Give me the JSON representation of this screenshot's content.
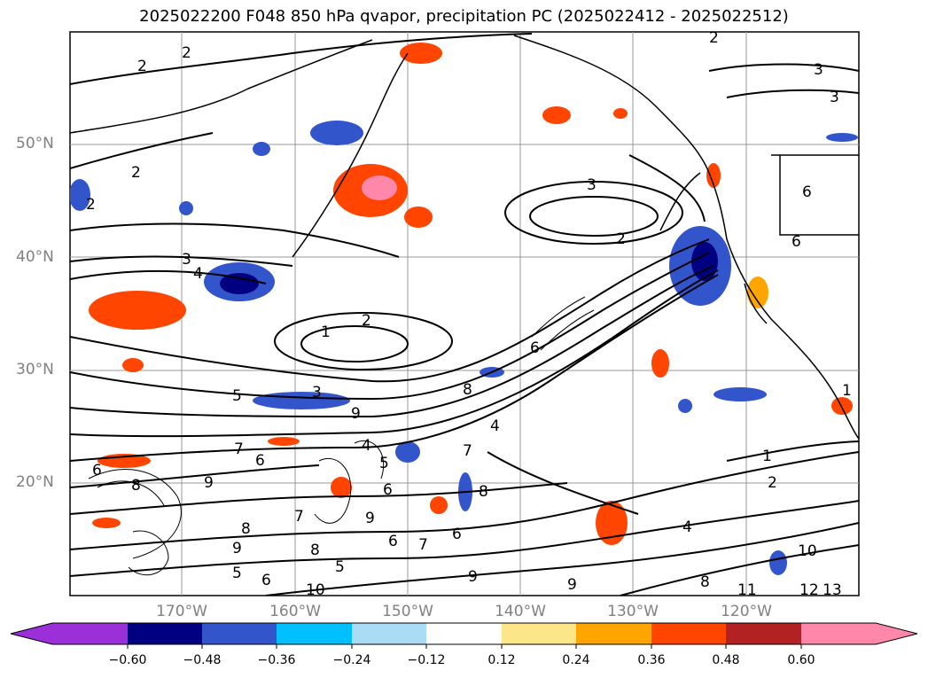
{
  "title": "2025022200 F048 850 hPa qvapor, precipitation PC (2025022412 - 2025022512)",
  "map": {
    "lat_labels": [
      "50°N",
      "40°N",
      "30°N",
      "20°N"
    ],
    "lon_labels": [
      "170°W",
      "160°W",
      "150°W",
      "140°W",
      "130°W",
      "120°W"
    ],
    "contour_labels": [
      "2",
      "2",
      "2",
      "2",
      "3",
      "3",
      "3",
      "2",
      "2",
      "3",
      "4",
      "1",
      "2",
      "6",
      "5",
      "3",
      "9",
      "8",
      "4",
      "7",
      "6",
      "5",
      "7",
      "4",
      "6",
      "9",
      "8",
      "6",
      "7",
      "5",
      "9",
      "6",
      "8",
      "7",
      "9",
      "8",
      "8",
      "5",
      "6",
      "9",
      "9",
      "6",
      "10",
      "4",
      "10",
      "2",
      "1",
      "8",
      "11",
      "12",
      "13",
      "1",
      "6",
      "6"
    ],
    "land_color": "#ffffff",
    "grid": true
  },
  "colorbar": {
    "colors": [
      "#9b30d9",
      "#000080",
      "#3355cc",
      "#00bfff",
      "#aaddf5",
      "#ffffff",
      "#fde68a",
      "#ffa500",
      "#ff4500",
      "#b22222",
      "#ff88aa",
      "#ff88aa"
    ],
    "tick_labels": [
      "−0.60",
      "−0.48",
      "−0.36",
      "−0.24",
      "−0.12",
      "0.12",
      "0.24",
      "0.36",
      "0.48",
      "0.60"
    ]
  }
}
